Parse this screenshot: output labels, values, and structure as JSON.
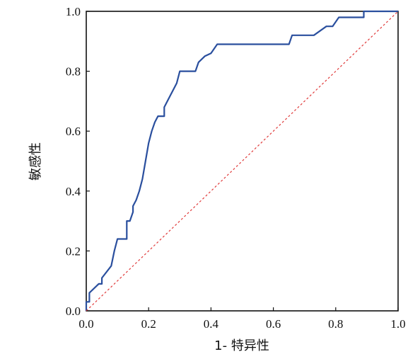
{
  "chart_data": {
    "type": "line",
    "xlabel": "1- 特异性",
    "ylabel": "敏感性",
    "xlim": [
      0.0,
      1.0
    ],
    "ylim": [
      0.0,
      1.0
    ],
    "x_ticks": [
      "0.0",
      "0.2",
      "0.4",
      "0.6",
      "0.8",
      "1.0"
    ],
    "y_ticks": [
      "0.0",
      "0.2",
      "0.4",
      "0.6",
      "0.8",
      "1.0"
    ],
    "grid": false,
    "legend": "none",
    "series": [
      {
        "color": "#2a4f9e",
        "style": "solid",
        "x": [
          0.0,
          0.0,
          0.01,
          0.01,
          0.04,
          0.05,
          0.05,
          0.08,
          0.09,
          0.1,
          0.1,
          0.13,
          0.13,
          0.14,
          0.15,
          0.15,
          0.16,
          0.17,
          0.18,
          0.19,
          0.2,
          0.21,
          0.22,
          0.23,
          0.24,
          0.25,
          0.25,
          0.27,
          0.29,
          0.3,
          0.31,
          0.35,
          0.36,
          0.38,
          0.4,
          0.42,
          0.65,
          0.66,
          0.73,
          0.77,
          0.79,
          0.81,
          0.89,
          0.89,
          1.0
        ],
        "y": [
          0.0,
          0.03,
          0.03,
          0.06,
          0.09,
          0.09,
          0.11,
          0.15,
          0.2,
          0.24,
          0.24,
          0.24,
          0.3,
          0.3,
          0.33,
          0.35,
          0.37,
          0.4,
          0.44,
          0.5,
          0.56,
          0.6,
          0.63,
          0.65,
          0.65,
          0.65,
          0.68,
          0.72,
          0.76,
          0.8,
          0.8,
          0.8,
          0.83,
          0.85,
          0.86,
          0.89,
          0.89,
          0.92,
          0.92,
          0.95,
          0.95,
          0.98,
          0.98,
          1.0,
          1.0
        ]
      },
      {
        "color": "#e03a3a",
        "style": "dotted",
        "x": [
          0.0,
          1.0
        ],
        "y": [
          0.0,
          1.0
        ]
      }
    ]
  }
}
